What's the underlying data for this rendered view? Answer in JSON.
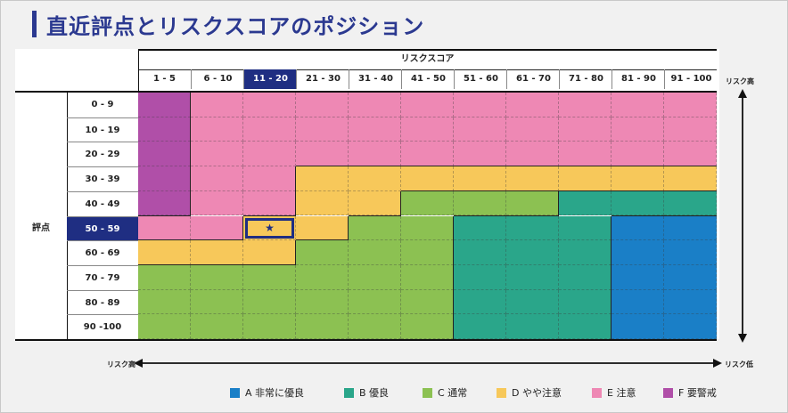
{
  "title": "直近評点とリスクスコアのポジション",
  "chart_data": {
    "type": "heatmap",
    "xlabel": "リスクスコア",
    "ylabel": "評点",
    "x_categories": [
      "1 - 5",
      "6 - 10",
      "11 - 20",
      "21 - 30",
      "31 - 40",
      "41 - 50",
      "51 - 60",
      "61 - 70",
      "71 - 80",
      "81 - 90",
      "91 - 100"
    ],
    "y_categories": [
      "0 - 9",
      "10 - 19",
      "20 - 29",
      "30 - 39",
      "40 - 49",
      "50 - 59",
      "60 - 69",
      "70 - 79",
      "80 - 89",
      "90 -100"
    ],
    "grid": [
      [
        "F",
        "E",
        "E",
        "E",
        "E",
        "E",
        "E",
        "E",
        "E",
        "E",
        "E"
      ],
      [
        "F",
        "E",
        "E",
        "E",
        "E",
        "E",
        "E",
        "E",
        "E",
        "E",
        "E"
      ],
      [
        "F",
        "E",
        "E",
        "E",
        "E",
        "E",
        "E",
        "E",
        "E",
        "E",
        "E"
      ],
      [
        "F",
        "E",
        "E",
        "D",
        "D",
        "D",
        "D",
        "D",
        "D",
        "D",
        "D"
      ],
      [
        "F",
        "E",
        "E",
        "D",
        "D",
        "C",
        "C",
        "C",
        "B",
        "B",
        "B"
      ],
      [
        "E",
        "E",
        "D",
        "D",
        "C",
        "C",
        "B",
        "B",
        "B",
        "A",
        "A"
      ],
      [
        "D",
        "D",
        "D",
        "C",
        "C",
        "C",
        "B",
        "B",
        "B",
        "A",
        "A"
      ],
      [
        "C",
        "C",
        "C",
        "C",
        "C",
        "C",
        "B",
        "B",
        "B",
        "A",
        "A"
      ],
      [
        "C",
        "C",
        "C",
        "C",
        "C",
        "C",
        "B",
        "B",
        "B",
        "A",
        "A"
      ],
      [
        "C",
        "C",
        "C",
        "C",
        "C",
        "C",
        "B",
        "B",
        "B",
        "A",
        "A"
      ]
    ],
    "highlight": {
      "x": "11 - 20",
      "y": "50 - 59",
      "marker": "★"
    },
    "legend": [
      {
        "key": "A",
        "label": "A 非常に優良",
        "color": "#1a7fc7"
      },
      {
        "key": "B",
        "label": "B 優良",
        "color": "#2aa68a"
      },
      {
        "key": "C",
        "label": "C 通常",
        "color": "#8cc152"
      },
      {
        "key": "D",
        "label": "D やや注意",
        "color": "#f7c85a"
      },
      {
        "key": "E",
        "label": "E 注意",
        "color": "#ee88b4"
      },
      {
        "key": "F",
        "label": "F 要警戒",
        "color": "#b04fa8"
      }
    ],
    "legend_position": "bottom-right"
  },
  "axis": {
    "risk_high_right": "リスク高",
    "risk_high_bottom": "リスク高",
    "risk_low_bottom": "リスク低"
  },
  "colors": {
    "accent": "#2b3990",
    "highlight_header": "#1f2e82"
  }
}
